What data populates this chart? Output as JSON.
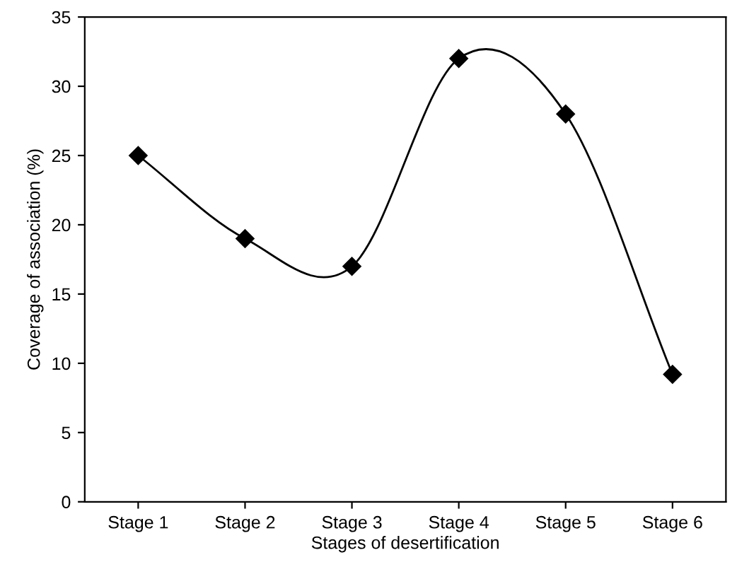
{
  "chart_data": {
    "type": "line",
    "xlabel": "Stages of desertification",
    "ylabel": "Coverage of association (%)",
    "categories": [
      "Stage 1",
      "Stage 2",
      "Stage 3",
      "Stage 4",
      "Stage 5",
      "Stage 6"
    ],
    "series": [
      {
        "color": "#000000",
        "values": [
          25,
          19,
          17,
          32,
          28,
          9.2
        ]
      }
    ],
    "ylim": [
      0,
      35
    ],
    "yticks": [
      0,
      5,
      10,
      15,
      20,
      25,
      30,
      35
    ],
    "marker": "diamond",
    "line_style": "solid"
  }
}
